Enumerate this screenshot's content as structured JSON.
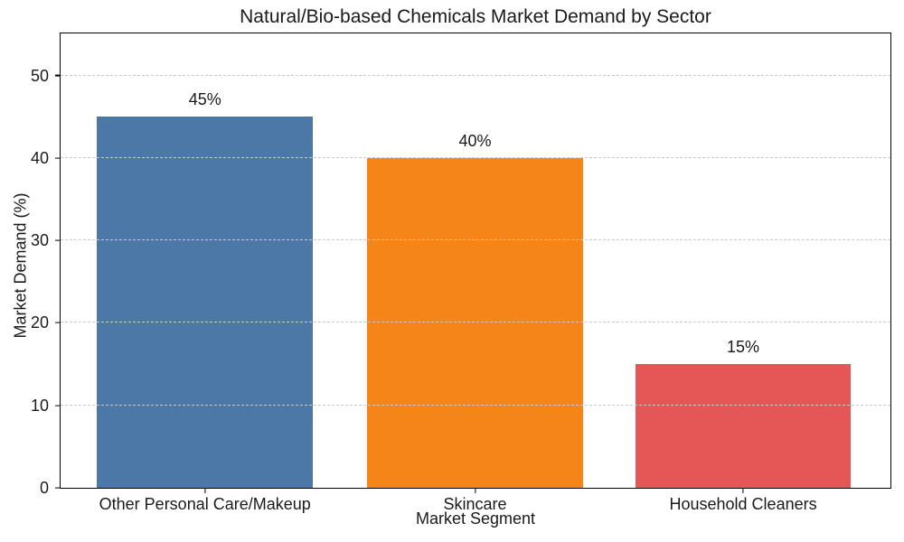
{
  "chart_data": {
    "type": "bar",
    "title": "Natural/Bio-based Chemicals Market Demand by Sector",
    "xlabel": "Market Segment",
    "ylabel": "Market Demand (%)",
    "categories": [
      "Other Personal Care/Makeup",
      "Skincare",
      "Household Cleaners"
    ],
    "values": [
      45,
      40,
      15
    ],
    "value_labels": [
      "45%",
      "40%",
      "15%"
    ],
    "bar_colors": [
      "#4C78A8",
      "#F58518",
      "#E45756"
    ],
    "ylim": [
      0,
      55.1
    ],
    "yticks": [
      0,
      10,
      20,
      30,
      40,
      50
    ],
    "grid": "horizontal dashed gridlines at yticks, drawn above bars",
    "legend_position": "none"
  },
  "style_colors": {
    "grid": "#c9c9c9",
    "spine": "#000000",
    "text": "#1a1a1a",
    "background": "#ffffff"
  }
}
